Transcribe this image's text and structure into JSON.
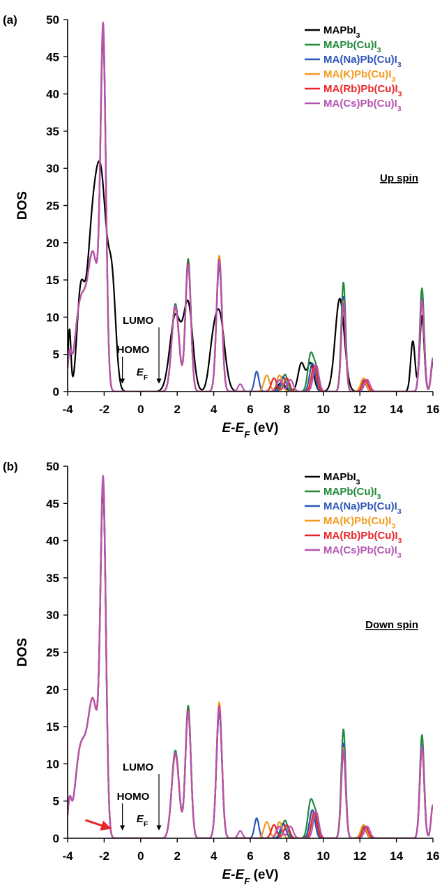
{
  "chart_data": [
    {
      "type": "line",
      "panel_label": "(a)",
      "spin_label": "Up spin",
      "xlabel_main": "E-E",
      "xlabel_sub": "F",
      "xlabel_unit": " (eV)",
      "ylabel": "DOS",
      "xlim": [
        -4,
        16
      ],
      "ylim": [
        0,
        50
      ],
      "xticks": [
        -4,
        -2,
        0,
        2,
        4,
        6,
        8,
        10,
        12,
        14,
        16
      ],
      "yticks": [
        0,
        5,
        10,
        15,
        20,
        25,
        30,
        35,
        40,
        45,
        50
      ],
      "grid": false,
      "legend_position": "top-right",
      "annotations": {
        "lumo": "LUMO",
        "lumo_x": 1.0,
        "homo": "HOMO",
        "homo_x": -1.0,
        "ef_main": "E",
        "ef_sub": "F",
        "ef_x": 0.0
      },
      "series": [
        {
          "name_main": "MAPbI",
          "name_sub": "3",
          "color": "#000000",
          "peaks": [
            [
              -3.9,
              8.3,
              0.08
            ],
            [
              -3.3,
              12.0,
              0.2
            ],
            [
              -2.7,
              17.5,
              0.3
            ],
            [
              -2.15,
              26.5,
              0.32
            ],
            [
              -1.55,
              12.0,
              0.2
            ],
            [
              1.9,
              10.2,
              0.3
            ],
            [
              2.6,
              11.5,
              0.25
            ],
            [
              3.9,
              3.5,
              0.2
            ],
            [
              4.3,
              10.5,
              0.28
            ],
            [
              7.7,
              1.2,
              0.2
            ],
            [
              8.8,
              3.8,
              0.18
            ],
            [
              9.3,
              3.8,
              0.18
            ],
            [
              10.9,
              12.5,
              0.25
            ],
            [
              14.9,
              6.8,
              0.12
            ],
            [
              15.4,
              10.2,
              0.12
            ],
            [
              16.0,
              4.0,
              0.1
            ]
          ]
        },
        {
          "name_main": "MAPb(Cu)I",
          "name_sub": "3",
          "color": "#1e8a3a",
          "peaks": [
            [
              -3.9,
              4.0,
              0.1
            ],
            [
              -3.3,
              11.5,
              0.3
            ],
            [
              -2.6,
              18.0,
              0.3
            ],
            [
              -2.05,
              45.0,
              0.15
            ],
            [
              1.9,
              11.8,
              0.2
            ],
            [
              2.6,
              17.8,
              0.15
            ],
            [
              4.3,
              17.5,
              0.15
            ],
            [
              7.9,
              2.3,
              0.15
            ],
            [
              9.3,
              4.8,
              0.15
            ],
            [
              9.6,
              3.0,
              0.15
            ],
            [
              11.1,
              14.7,
              0.12
            ],
            [
              12.2,
              1.5,
              0.15
            ],
            [
              15.4,
              13.9,
              0.12
            ],
            [
              16.0,
              4.5,
              0.1
            ]
          ]
        },
        {
          "name_main": "MA(Na)Pb(Cu)I",
          "name_sub": "3",
          "color": "#2e56b8",
          "peaks": [
            [
              -3.9,
              4.0,
              0.1
            ],
            [
              -3.3,
              11.5,
              0.3
            ],
            [
              -2.6,
              18.0,
              0.3
            ],
            [
              -2.05,
              44.0,
              0.15
            ],
            [
              1.9,
              11.5,
              0.2
            ],
            [
              2.6,
              17.3,
              0.15
            ],
            [
              4.3,
              17.0,
              0.15
            ],
            [
              6.35,
              2.7,
              0.12
            ],
            [
              7.8,
              2.0,
              0.15
            ],
            [
              9.4,
              3.8,
              0.15
            ],
            [
              11.1,
              12.8,
              0.12
            ],
            [
              12.2,
              1.5,
              0.15
            ],
            [
              15.4,
              12.5,
              0.12
            ],
            [
              16.0,
              4.5,
              0.1
            ]
          ]
        },
        {
          "name_main": "MA(K)Pb(Cu)I",
          "name_sub": "3",
          "color": "#f39a1c",
          "peaks": [
            [
              -3.9,
              4.0,
              0.1
            ],
            [
              -3.3,
              11.5,
              0.3
            ],
            [
              -2.6,
              18.0,
              0.3
            ],
            [
              -2.05,
              45.0,
              0.15
            ],
            [
              1.9,
              11.2,
              0.2
            ],
            [
              2.6,
              17.0,
              0.15
            ],
            [
              4.3,
              18.3,
              0.15
            ],
            [
              6.9,
              2.2,
              0.15
            ],
            [
              7.6,
              2.2,
              0.15
            ],
            [
              9.5,
              3.4,
              0.15
            ],
            [
              11.1,
              12.2,
              0.12
            ],
            [
              12.2,
              1.8,
              0.15
            ],
            [
              15.4,
              12.0,
              0.12
            ],
            [
              16.0,
              4.5,
              0.1
            ]
          ]
        },
        {
          "name_main": "MA(Rb)Pb(Cu)I",
          "name_sub": "3",
          "color": "#e8262b",
          "peaks": [
            [
              -3.9,
              4.0,
              0.1
            ],
            [
              -3.3,
              11.5,
              0.3
            ],
            [
              -2.6,
              18.0,
              0.3
            ],
            [
              -2.05,
              45.5,
              0.15
            ],
            [
              1.9,
              11.4,
              0.2
            ],
            [
              2.6,
              17.2,
              0.15
            ],
            [
              4.3,
              17.8,
              0.15
            ],
            [
              7.3,
              1.8,
              0.15
            ],
            [
              8.0,
              1.8,
              0.15
            ],
            [
              9.5,
              3.5,
              0.15
            ],
            [
              11.1,
              11.5,
              0.12
            ],
            [
              12.3,
              1.6,
              0.15
            ],
            [
              15.4,
              12.3,
              0.12
            ],
            [
              16.0,
              4.5,
              0.1
            ]
          ]
        },
        {
          "name_main": "MA(Cs)Pb(Cu)I",
          "name_sub": "3",
          "color": "#b554b3",
          "peaks": [
            [
              -3.9,
              4.0,
              0.1
            ],
            [
              -3.3,
              11.5,
              0.3
            ],
            [
              -2.6,
              18.0,
              0.3
            ],
            [
              -2.05,
              46.2,
              0.15
            ],
            [
              1.9,
              11.5,
              0.2
            ],
            [
              2.6,
              17.0,
              0.15
            ],
            [
              4.3,
              17.7,
              0.15
            ],
            [
              5.45,
              1.0,
              0.12
            ],
            [
              7.6,
              1.6,
              0.15
            ],
            [
              8.2,
              1.6,
              0.15
            ],
            [
              9.6,
              3.6,
              0.15
            ],
            [
              11.1,
              12.0,
              0.12
            ],
            [
              12.4,
              1.6,
              0.15
            ],
            [
              15.4,
              12.4,
              0.12
            ],
            [
              16.0,
              4.5,
              0.1
            ]
          ]
        }
      ]
    },
    {
      "type": "line",
      "panel_label": "(b)",
      "spin_label": "Down spin",
      "xlabel_main": "E-E",
      "xlabel_sub": "F",
      "xlabel_unit": " (eV)",
      "ylabel": "DOS",
      "xlim": [
        -4,
        16
      ],
      "ylim": [
        0,
        50
      ],
      "xticks": [
        -4,
        -2,
        0,
        2,
        4,
        6,
        8,
        10,
        12,
        14,
        16
      ],
      "yticks": [
        0,
        5,
        10,
        15,
        20,
        25,
        30,
        35,
        40,
        45,
        50
      ],
      "grid": false,
      "legend_position": "top-right",
      "annotations": {
        "lumo": "LUMO",
        "lumo_x": 1.0,
        "homo": "HOMO",
        "homo_x": -1.0,
        "ef_main": "E",
        "ef_sub": "F",
        "ef_x": 0.0,
        "red_arrow_target_x": -1.5
      },
      "series": [
        {
          "name_main": "MAPbI",
          "name_sub": "3",
          "color": "#000000",
          "peaks": [
            [
              -3.9,
              4.0,
              0.1
            ],
            [
              -3.3,
              11.5,
              0.3
            ],
            [
              -2.6,
              18.0,
              0.3
            ],
            [
              -2.05,
              43.5,
              0.15
            ],
            [
              1.9,
              11.5,
              0.2
            ],
            [
              2.6,
              17.3,
              0.15
            ],
            [
              4.3,
              17.3,
              0.15
            ],
            [
              7.8,
              2.0,
              0.15
            ],
            [
              9.4,
              3.8,
              0.15
            ],
            [
              11.1,
              12.5,
              0.12
            ],
            [
              12.2,
              1.5,
              0.15
            ],
            [
              15.4,
              12.5,
              0.12
            ],
            [
              16.0,
              4.5,
              0.1
            ]
          ]
        },
        {
          "name_main": "MAPb(Cu)I",
          "name_sub": "3",
          "color": "#1e8a3a",
          "peaks": [
            [
              -3.9,
              4.0,
              0.1
            ],
            [
              -3.3,
              11.5,
              0.3
            ],
            [
              -2.6,
              18.0,
              0.3
            ],
            [
              -2.05,
              44.5,
              0.15
            ],
            [
              1.9,
              11.8,
              0.2
            ],
            [
              2.6,
              17.8,
              0.15
            ],
            [
              4.3,
              17.5,
              0.15
            ],
            [
              7.9,
              2.4,
              0.15
            ],
            [
              9.3,
              4.8,
              0.15
            ],
            [
              9.6,
              3.0,
              0.15
            ],
            [
              11.1,
              14.7,
              0.12
            ],
            [
              12.2,
              1.5,
              0.15
            ],
            [
              15.4,
              13.9,
              0.12
            ],
            [
              16.0,
              4.5,
              0.1
            ]
          ]
        },
        {
          "name_main": "MA(Na)Pb(Cu)I",
          "name_sub": "3",
          "color": "#2e56b8",
          "peaks": [
            [
              -3.9,
              4.0,
              0.1
            ],
            [
              -3.3,
              11.5,
              0.3
            ],
            [
              -2.6,
              18.0,
              0.3
            ],
            [
              -2.05,
              43.8,
              0.15
            ],
            [
              1.9,
              11.5,
              0.2
            ],
            [
              2.6,
              17.3,
              0.15
            ],
            [
              4.3,
              17.0,
              0.15
            ],
            [
              6.35,
              2.7,
              0.12
            ],
            [
              7.8,
              2.0,
              0.15
            ],
            [
              9.4,
              3.8,
              0.15
            ],
            [
              11.1,
              12.8,
              0.12
            ],
            [
              12.2,
              1.5,
              0.15
            ],
            [
              15.4,
              12.5,
              0.12
            ],
            [
              16.0,
              4.5,
              0.1
            ]
          ]
        },
        {
          "name_main": "MA(K)Pb(Cu)I",
          "name_sub": "3",
          "color": "#f39a1c",
          "peaks": [
            [
              -3.9,
              4.0,
              0.1
            ],
            [
              -3.3,
              11.5,
              0.3
            ],
            [
              -2.6,
              18.0,
              0.3
            ],
            [
              -2.05,
              44.5,
              0.15
            ],
            [
              1.9,
              11.2,
              0.2
            ],
            [
              2.6,
              17.0,
              0.15
            ],
            [
              4.3,
              18.3,
              0.15
            ],
            [
              6.9,
              2.2,
              0.15
            ],
            [
              7.6,
              2.2,
              0.15
            ],
            [
              9.5,
              3.4,
              0.15
            ],
            [
              11.1,
              12.2,
              0.12
            ],
            [
              12.2,
              1.8,
              0.15
            ],
            [
              15.4,
              12.0,
              0.12
            ],
            [
              16.0,
              4.5,
              0.1
            ]
          ]
        },
        {
          "name_main": "MA(Rb)Pb(Cu)I",
          "name_sub": "3",
          "color": "#e8262b",
          "peaks": [
            [
              -3.9,
              4.0,
              0.1
            ],
            [
              -3.3,
              11.5,
              0.3
            ],
            [
              -2.6,
              18.0,
              0.3
            ],
            [
              -2.05,
              45.0,
              0.15
            ],
            [
              1.9,
              11.4,
              0.2
            ],
            [
              2.6,
              17.2,
              0.15
            ],
            [
              4.3,
              17.8,
              0.15
            ],
            [
              7.3,
              1.8,
              0.15
            ],
            [
              8.0,
              1.8,
              0.15
            ],
            [
              9.5,
              3.5,
              0.15
            ],
            [
              11.1,
              11.5,
              0.12
            ],
            [
              12.3,
              1.6,
              0.15
            ],
            [
              15.4,
              12.3,
              0.12
            ],
            [
              16.0,
              4.5,
              0.1
            ]
          ]
        },
        {
          "name_main": "MA(Cs)Pb(Cu)I",
          "name_sub": "3",
          "color": "#b554b3",
          "peaks": [
            [
              -3.9,
              4.0,
              0.1
            ],
            [
              -3.3,
              11.5,
              0.3
            ],
            [
              -2.6,
              18.0,
              0.3
            ],
            [
              -2.05,
              45.3,
              0.15
            ],
            [
              1.9,
              11.5,
              0.2
            ],
            [
              2.6,
              17.0,
              0.15
            ],
            [
              4.3,
              17.7,
              0.15
            ],
            [
              5.45,
              1.0,
              0.12
            ],
            [
              7.6,
              1.6,
              0.15
            ],
            [
              8.2,
              1.6,
              0.15
            ],
            [
              9.6,
              3.6,
              0.15
            ],
            [
              11.1,
              12.0,
              0.12
            ],
            [
              12.4,
              1.6,
              0.15
            ],
            [
              15.4,
              12.4,
              0.12
            ],
            [
              16.0,
              4.5,
              0.1
            ]
          ]
        }
      ]
    }
  ]
}
